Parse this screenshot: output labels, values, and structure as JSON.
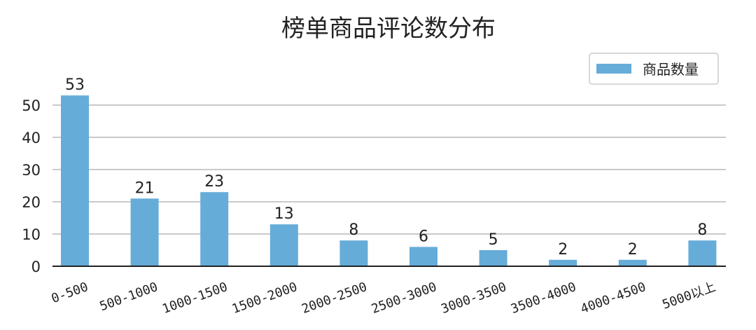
{
  "chart_data": {
    "type": "bar",
    "title": "榜单商品评论数分布",
    "xlabel": "",
    "ylabel": "",
    "categories": [
      "0-500",
      "500-1000",
      "1000-1500",
      "1500-2000",
      "2000-2500",
      "2500-3000",
      "3000-3500",
      "3500-4000",
      "4000-4500",
      "5000以上"
    ],
    "series": [
      {
        "name": "商品数量",
        "values": [
          53,
          21,
          23,
          13,
          8,
          6,
          5,
          2,
          2,
          8
        ],
        "color": "#66acd9"
      }
    ],
    "yticks": [
      0,
      10,
      20,
      30,
      40,
      50
    ],
    "ylim": [
      0,
      54
    ],
    "grid": "horizontal",
    "legend_position": "top-right",
    "data_labels": true
  }
}
